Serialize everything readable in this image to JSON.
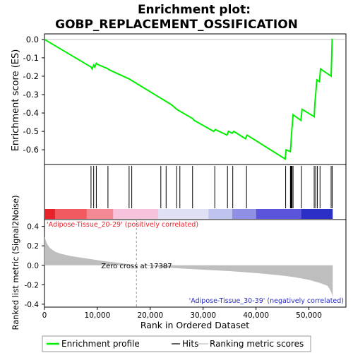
{
  "chart_data": {
    "type": "line",
    "title": "Enrichment plot:\nGOBP_REPLACEMENT_OSSIFICATION",
    "top_panel": {
      "ylabel": "Enrichment score (ES)",
      "ylim": [
        -0.68,
        0.03
      ],
      "yticks": [
        0.0,
        -0.1,
        -0.2,
        -0.3,
        -0.4,
        -0.5,
        -0.6
      ],
      "ytick_labels": [
        "0.0",
        "-0.1",
        "-0.2",
        "-0.3",
        "-0.4",
        "-0.5",
        "-0.6"
      ],
      "series": [
        {
          "name": "Enrichment profile",
          "color": "#00ee00",
          "x": [
            0,
            8800,
            9000,
            9300,
            9500,
            9800,
            10000,
            12000,
            12200,
            16000,
            16300,
            22000,
            22300,
            24000,
            25000,
            25300,
            28000,
            28300,
            32000,
            32300,
            34500,
            34800,
            35500,
            35800,
            38000,
            38300,
            45500,
            45700,
            46500,
            46600,
            46700,
            46800,
            46900,
            47000,
            48500,
            48700,
            51000,
            51100,
            51300,
            51500,
            52000,
            52200,
            54200,
            54300,
            54400,
            54500
          ],
          "y": [
            0.0,
            -0.15,
            -0.16,
            -0.14,
            -0.15,
            -0.13,
            -0.135,
            -0.16,
            -0.165,
            -0.215,
            -0.22,
            -0.32,
            -0.325,
            -0.355,
            -0.38,
            -0.385,
            -0.43,
            -0.44,
            -0.5,
            -0.49,
            -0.52,
            -0.5,
            -0.51,
            -0.5,
            -0.54,
            -0.52,
            -0.65,
            -0.6,
            -0.61,
            -0.57,
            -0.52,
            -0.48,
            -0.45,
            -0.41,
            -0.44,
            -0.38,
            -0.42,
            -0.36,
            -0.29,
            -0.22,
            -0.23,
            -0.16,
            -0.2,
            -0.1,
            0.0,
            0.0
          ]
        }
      ]
    },
    "hits_panel": {
      "hit_positions": [
        8800,
        9300,
        9800,
        12000,
        16000,
        16500,
        22000,
        23000,
        25000,
        25600,
        28000,
        32200,
        34600,
        35600,
        38200,
        45600,
        46500,
        46600,
        46700,
        46800,
        47000,
        48600,
        51000,
        51300,
        51600,
        52100,
        54200,
        54400
      ],
      "colorbar": [
        {
          "from": 0,
          "to": 2000,
          "color": "#e8222a"
        },
        {
          "from": 2000,
          "to": 8000,
          "color": "#f15a5e"
        },
        {
          "from": 8000,
          "to": 13000,
          "color": "#f38a93"
        },
        {
          "from": 13000,
          "to": 21500,
          "color": "#f7c3dc"
        },
        {
          "from": 21500,
          "to": 31000,
          "color": "#dfe0f3"
        },
        {
          "from": 31000,
          "to": 35500,
          "color": "#bfc3ef"
        },
        {
          "from": 35500,
          "to": 40000,
          "color": "#8f8fe6"
        },
        {
          "from": 40000,
          "to": 48500,
          "color": "#5a55da"
        },
        {
          "from": 48500,
          "to": 54500,
          "color": "#2c2fc6"
        }
      ]
    },
    "metric_panel": {
      "ylabel": "Ranked list metric (Signal2Noise)",
      "ylim": [
        -0.43,
        0.47
      ],
      "yticks": [
        0.4,
        0.2,
        0.0,
        -0.2,
        -0.4
      ],
      "ytick_labels": [
        "0.4",
        "0.2",
        "0.0",
        "-0.2",
        "-0.4"
      ],
      "fill_color": "#bebebe",
      "x": [
        0,
        500,
        1000,
        2000,
        3000,
        5000,
        8000,
        11000,
        14000,
        17387,
        20000,
        25000,
        30000,
        35000,
        40000,
        44000,
        47000,
        50000,
        52000,
        53500,
        54000,
        54400,
        54500
      ],
      "y": [
        0.29,
        0.22,
        0.18,
        0.14,
        0.12,
        0.095,
        0.07,
        0.045,
        0.025,
        0.0,
        -0.01,
        -0.03,
        -0.045,
        -0.06,
        -0.08,
        -0.1,
        -0.12,
        -0.15,
        -0.18,
        -0.21,
        -0.25,
        -0.3,
        -0.34
      ],
      "zero_cross_label": "Zero cross at 17387",
      "zero_cross_x": 17387,
      "positive_label": "'Adipose-Tissue_20-29' (positively correlated)",
      "negative_label": "'Adipose-Tissue_30-39' (negatively correlated)"
    },
    "xlabel": "Rank in Ordered Dataset",
    "xlim": [
      0,
      57000
    ],
    "xticks": [
      0,
      10000,
      20000,
      30000,
      40000,
      50000
    ],
    "xtick_labels": [
      "0",
      "10,000",
      "20,000",
      "30,000",
      "40,000",
      "50,000"
    ],
    "legend": {
      "placement": "bottom",
      "entries": [
        {
          "label": "Enrichment profile",
          "color": "#00ee00"
        },
        {
          "label": "Hits",
          "color": "#000000"
        },
        {
          "label": "Ranking metric scores",
          "color": "#bebebe"
        }
      ]
    }
  }
}
